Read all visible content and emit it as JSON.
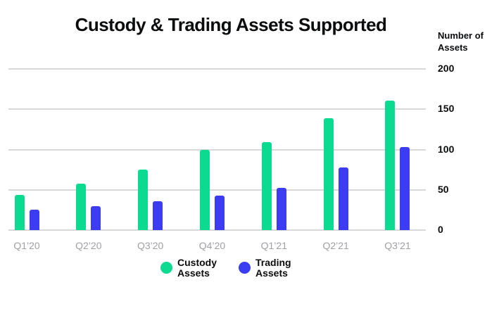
{
  "title": "Custody & Trading Assets Supported",
  "y_axis_title": "Number of Assets",
  "colors": {
    "custody": "#0cda91",
    "trading": "#3c3cf2",
    "gridline": "#d8d8d8",
    "axis_label_gray": "#9ea0a5",
    "text": "#0b0c0e"
  },
  "chart_data": {
    "type": "bar",
    "categories": [
      "Q1’20",
      "Q2’20",
      "Q3’20",
      "Q4’20",
      "Q1’21",
      "Q2’21",
      "Q3’21"
    ],
    "series": [
      {
        "name": "Custody Assets",
        "color_key": "custody",
        "values": [
          44,
          58,
          75,
          100,
          109,
          139,
          161
        ]
      },
      {
        "name": "Trading Assets",
        "color_key": "trading",
        "values": [
          25,
          30,
          36,
          43,
          52,
          78,
          103
        ]
      }
    ],
    "title": "Custody & Trading Assets Supported",
    "xlabel": "",
    "ylabel": "Number of Assets",
    "ylim": [
      0,
      200
    ],
    "yticks": [
      0,
      50,
      100,
      150,
      200
    ],
    "grid": true,
    "legend_position": "bottom"
  },
  "legend": {
    "items": [
      {
        "label": "Custody Assets",
        "color_key": "custody"
      },
      {
        "label": "Trading Assets",
        "color_key": "trading"
      }
    ]
  }
}
